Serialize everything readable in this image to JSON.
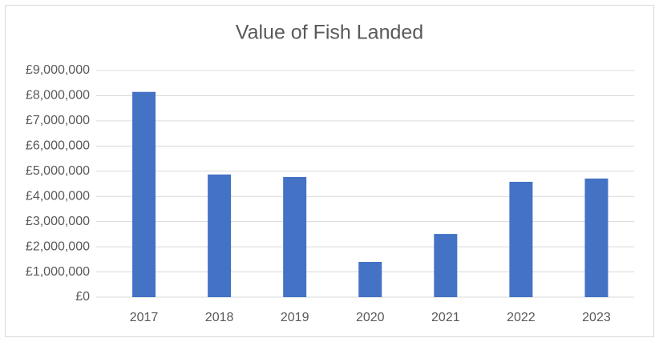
{
  "chart_data": {
    "type": "bar",
    "title": "Value of Fish Landed",
    "categories": [
      "2017",
      "2018",
      "2019",
      "2020",
      "2021",
      "2022",
      "2023"
    ],
    "values": [
      8150000,
      4870000,
      4770000,
      1400000,
      2510000,
      4580000,
      4710000
    ],
    "color": "#4472c4",
    "ylim": [
      0,
      9000000
    ],
    "yticks": [
      {
        "value": 0,
        "label": "£0"
      },
      {
        "value": 1000000,
        "label": "£1,000,000"
      },
      {
        "value": 2000000,
        "label": "£2,000,000"
      },
      {
        "value": 3000000,
        "label": "£3,000,000"
      },
      {
        "value": 4000000,
        "label": "£4,000,000"
      },
      {
        "value": 5000000,
        "label": "£5,000,000"
      },
      {
        "value": 6000000,
        "label": "£6,000,000"
      },
      {
        "value": 7000000,
        "label": "£7,000,000"
      },
      {
        "value": 8000000,
        "label": "£8,000,000"
      },
      {
        "value": 9000000,
        "label": "£9,000,000"
      }
    ],
    "grid": true
  }
}
